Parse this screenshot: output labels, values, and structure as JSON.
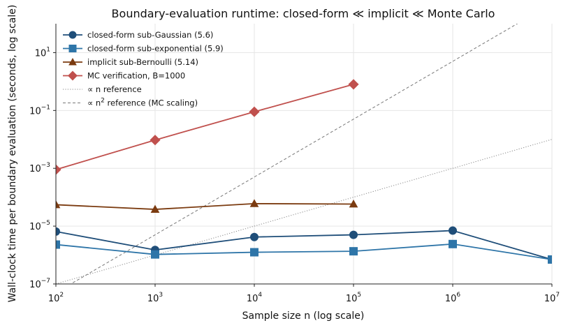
{
  "chart_data": {
    "type": "line",
    "title": "Boundary-evaluation runtime: closed-form ≪ implicit ≪ Monte Carlo",
    "xlabel": "Sample size n (log scale)",
    "ylabel": "Wall-clock time per boundary evaluation (seconds, log scale)",
    "xscale": "log",
    "yscale": "log",
    "xlim": [
      100,
      10000000
    ],
    "ylim": [
      1e-07,
      100
    ],
    "x_ticks": [
      {
        "value": 100,
        "base": "10",
        "exp": "2"
      },
      {
        "value": 1000,
        "base": "10",
        "exp": "3"
      },
      {
        "value": 10000,
        "base": "10",
        "exp": "4"
      },
      {
        "value": 100000,
        "base": "10",
        "exp": "5"
      },
      {
        "value": 1000000,
        "base": "10",
        "exp": "6"
      },
      {
        "value": 10000000,
        "base": "10",
        "exp": "7"
      }
    ],
    "y_ticks": [
      {
        "value": 1e-07,
        "base": "10",
        "exp": "−7"
      },
      {
        "value": 1e-05,
        "base": "10",
        "exp": "−5"
      },
      {
        "value": 0.001,
        "base": "10",
        "exp": "−3"
      },
      {
        "value": 0.1,
        "base": "10",
        "exp": "−1"
      },
      {
        "value": 10,
        "base": "10",
        "exp": "1"
      }
    ],
    "grid": true,
    "legend_position": "top-left",
    "series": [
      {
        "name": "closed-form sub-Gaussian (5.6)",
        "color": "#1f4e79",
        "marker": "circle",
        "line": "solid",
        "x": [
          100,
          1000,
          10000,
          100000,
          1000000,
          10000000
        ],
        "y": [
          6.5e-06,
          1.5e-06,
          4.2e-06,
          5e-06,
          7e-06,
          7e-07
        ]
      },
      {
        "name": "closed-form sub-exponential (5.9)",
        "color": "#2e75a8",
        "marker": "square",
        "line": "solid",
        "x": [
          100,
          1000,
          10000,
          100000,
          1000000,
          10000000
        ],
        "y": [
          2.3e-06,
          1.05e-06,
          1.25e-06,
          1.35e-06,
          2.4e-06,
          7e-07
        ]
      },
      {
        "name": "implicit sub-Bernoulli (5.14)",
        "color": "#7b3b10",
        "marker": "triangle",
        "line": "solid",
        "x": [
          100,
          1000,
          10000,
          100000
        ],
        "y": [
          5.5e-05,
          3.8e-05,
          6e-05,
          5.8e-05
        ]
      },
      {
        "name": "MC verification, B=1000",
        "color": "#c0504d",
        "marker": "diamond",
        "line": "solid",
        "x": [
          100,
          1000,
          10000,
          100000
        ],
        "y": [
          0.0009,
          0.0095,
          0.09,
          0.8
        ]
      },
      {
        "name": "∝ n reference",
        "color": "#888888",
        "marker": "none",
        "line": "dotted",
        "x": [
          100,
          10000000
        ],
        "y": [
          1e-07,
          0.01
        ]
      },
      {
        "name": "∝ n² reference (MC scaling)",
        "color": "#777777",
        "marker": "none",
        "line": "dashed",
        "x": [
          100,
          10000000
        ],
        "y": [
          5e-08,
          500
        ]
      }
    ],
    "legend": [
      {
        "pre": "closed-form sub-Gaussian (5.6)",
        "sup": "",
        "post": ""
      },
      {
        "pre": "closed-form sub-exponential (5.9)",
        "sup": "",
        "post": ""
      },
      {
        "pre": "implicit sub-Bernoulli (5.14)",
        "sup": "",
        "post": ""
      },
      {
        "pre": "MC verification, B=1000",
        "sup": "",
        "post": ""
      },
      {
        "pre": "∝ n reference",
        "sup": "",
        "post": ""
      },
      {
        "pre": "∝ n",
        "sup": "2",
        "post": " reference (MC scaling)"
      }
    ]
  }
}
